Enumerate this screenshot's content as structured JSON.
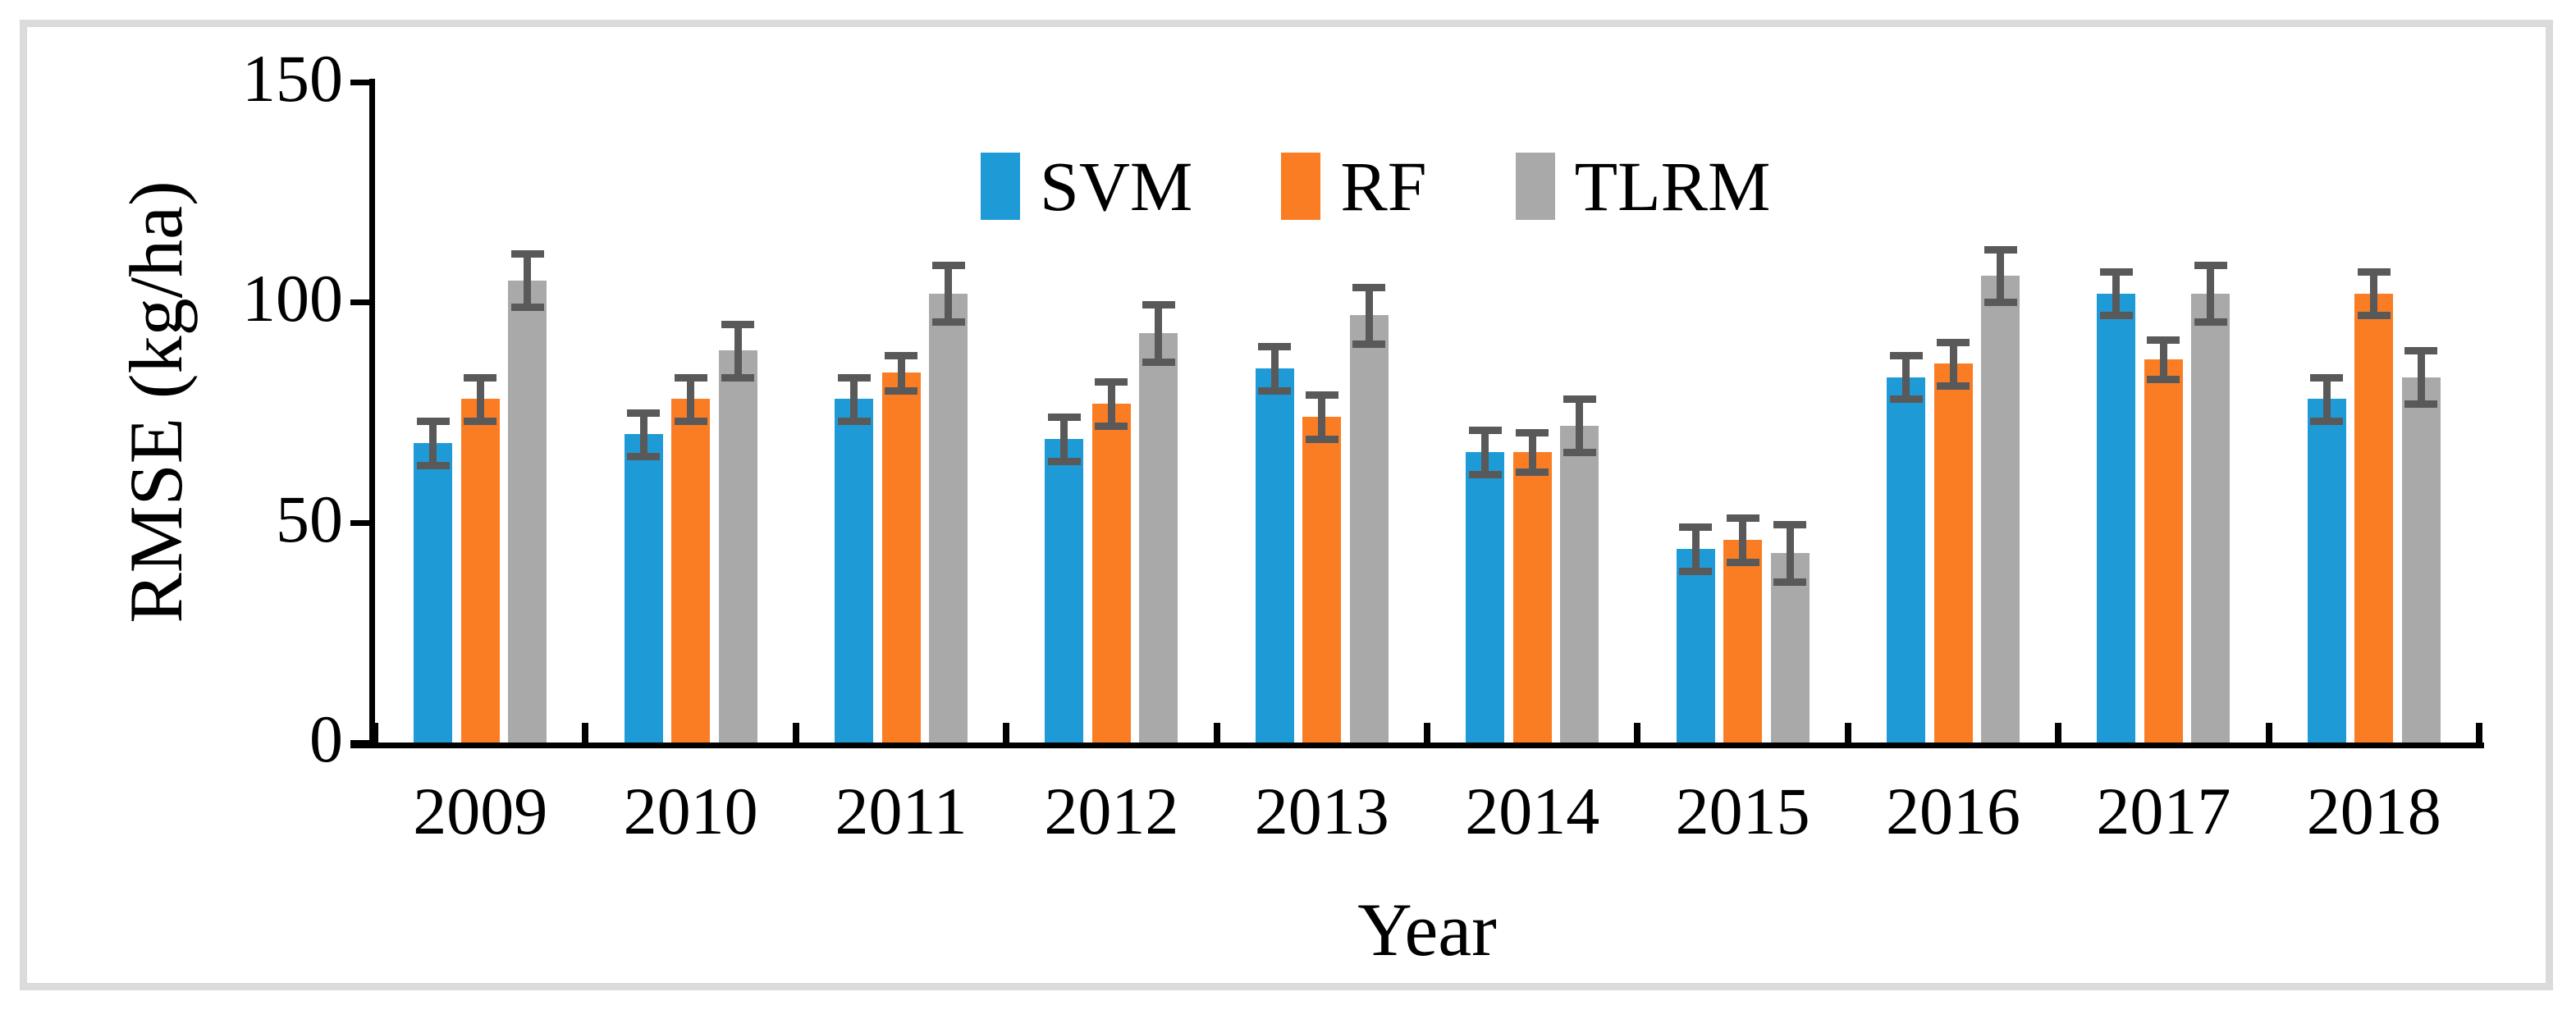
{
  "figure": {
    "background": "#ffffff",
    "border_color": "#DBDBDB"
  },
  "chart_data": {
    "type": "bar",
    "title": "",
    "xlabel": "Year",
    "ylabel": "RMSE (kg/ha)",
    "ylim": [
      0,
      150
    ],
    "yticks": [
      0,
      50,
      100,
      150
    ],
    "grid": false,
    "legend_position": "top-center",
    "axis_color": "#000000",
    "error_bar_color": "#595959",
    "categories": [
      "2009",
      "2010",
      "2011",
      "2012",
      "2013",
      "2014",
      "2015",
      "2016",
      "2017",
      "2018"
    ],
    "series": [
      {
        "name": "SVM",
        "color": "#1E9BD7",
        "values": [
          68,
          70,
          78,
          69,
          85,
          66,
          44,
          83,
          102,
          78
        ],
        "errors": [
          5,
          5,
          5,
          5,
          5,
          5,
          5,
          5,
          5,
          5
        ]
      },
      {
        "name": "RF",
        "color": "#FB7D23",
        "values": [
          78,
          78,
          84,
          77,
          74,
          66,
          46,
          86,
          87,
          102
        ],
        "errors": [
          5,
          5,
          4,
          5,
          5,
          4.5,
          5,
          5,
          4.5,
          5
        ]
      },
      {
        "name": "TLRM",
        "color": "#A9A9A9",
        "values": [
          105,
          89,
          102,
          93,
          97,
          72,
          43,
          106,
          102,
          83
        ],
        "errors": [
          6,
          6,
          6.5,
          6.5,
          6.5,
          6,
          6.5,
          6,
          6.5,
          6
        ]
      }
    ]
  }
}
